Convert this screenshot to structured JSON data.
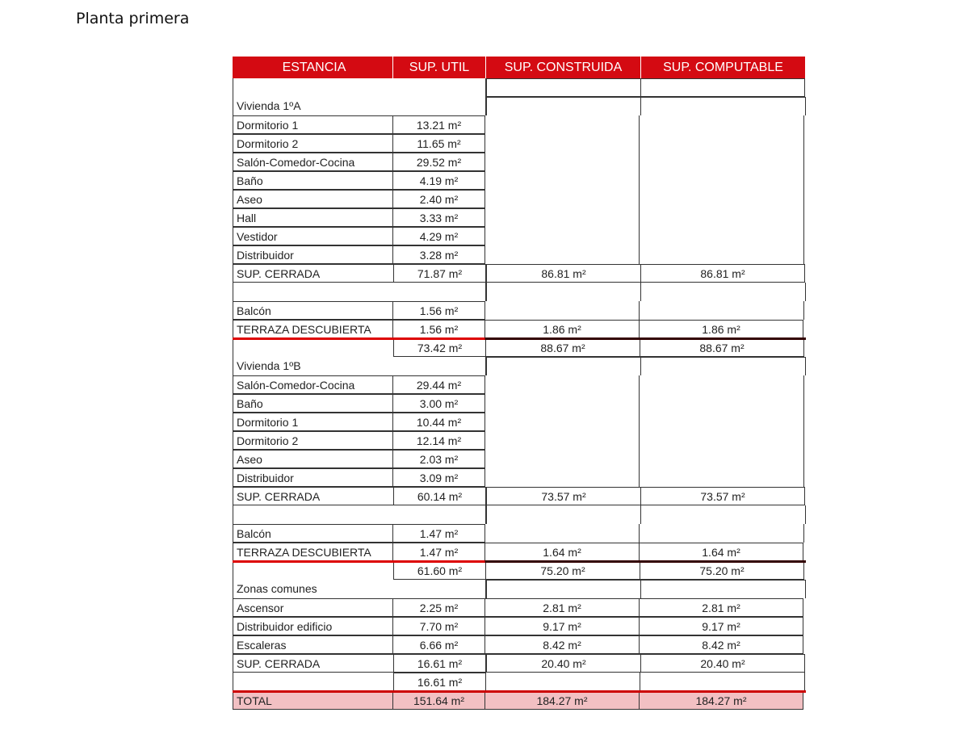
{
  "title": "Planta primera",
  "header": [
    "ESTANCIA",
    "SUP. UTIL",
    "SUP. CONSTRUIDA",
    "SUP. COMPUTABLE"
  ],
  "colors": {
    "header_bg": "#d40a12",
    "total_bg": "#f2c0c3",
    "separator": "#cc0000"
  },
  "rows": [
    {
      "type": "blank-top",
      "cells": [
        "",
        "",
        "",
        ""
      ]
    },
    {
      "type": "section",
      "cells": [
        "Vivienda 1ºA",
        "",
        "",
        ""
      ]
    },
    {
      "type": "item",
      "cells": [
        "Dormitorio 1",
        "13.21 m²",
        "",
        ""
      ]
    },
    {
      "type": "item",
      "cells": [
        "Dormitorio 2",
        "11.65 m²",
        "",
        ""
      ]
    },
    {
      "type": "item",
      "cells": [
        "Salón-Comedor-Cocina",
        "29.52 m²",
        "",
        ""
      ]
    },
    {
      "type": "item",
      "cells": [
        "Baño",
        "4.19 m²",
        "",
        ""
      ]
    },
    {
      "type": "item",
      "cells": [
        "Aseo",
        "2.40 m²",
        "",
        ""
      ]
    },
    {
      "type": "item",
      "cells": [
        "Hall",
        "3.33 m²",
        "",
        ""
      ]
    },
    {
      "type": "item",
      "cells": [
        "Vestidor",
        "4.29 m²",
        "",
        ""
      ]
    },
    {
      "type": "item",
      "cells": [
        "Distribuidor",
        "3.28 m²",
        "",
        ""
      ]
    },
    {
      "type": "value",
      "cells": [
        "SUP. CERRADA",
        "71.87 m²",
        "86.81 m²",
        "86.81 m²"
      ]
    },
    {
      "type": "blank",
      "cells": [
        "",
        "",
        "",
        ""
      ]
    },
    {
      "type": "item",
      "cells": [
        "Balcón",
        "1.56 m²",
        "",
        ""
      ]
    },
    {
      "type": "value-sep",
      "cells": [
        "TERRAZA DESCUBIERTA",
        "1.56 m²",
        "1.86 m²",
        "1.86 m²"
      ]
    },
    {
      "type": "subtotal",
      "cells": [
        "",
        "73.42 m²",
        "88.67 m²",
        "88.67 m²"
      ]
    },
    {
      "type": "section",
      "cells": [
        "Vivienda 1ºB",
        "",
        "",
        ""
      ]
    },
    {
      "type": "item",
      "cells": [
        "Salón-Comedor-Cocina",
        "29.44 m²",
        "",
        ""
      ]
    },
    {
      "type": "item",
      "cells": [
        "Baño",
        "3.00 m²",
        "",
        ""
      ]
    },
    {
      "type": "item",
      "cells": [
        "Dormitorio 1",
        "10.44 m²",
        "",
        ""
      ]
    },
    {
      "type": "item",
      "cells": [
        "Dormitorio 2",
        "12.14 m²",
        "",
        ""
      ]
    },
    {
      "type": "item",
      "cells": [
        "Aseo",
        "2.03 m²",
        "",
        ""
      ]
    },
    {
      "type": "item",
      "cells": [
        "Distribuidor",
        "3.09 m²",
        "",
        ""
      ]
    },
    {
      "type": "value",
      "cells": [
        "SUP. CERRADA",
        "60.14 m²",
        "73.57 m²",
        "73.57 m²"
      ]
    },
    {
      "type": "blank",
      "cells": [
        "",
        "",
        "",
        ""
      ]
    },
    {
      "type": "item",
      "cells": [
        "Balcón",
        "1.47 m²",
        "",
        ""
      ]
    },
    {
      "type": "value-sep",
      "cells": [
        "TERRAZA DESCUBIERTA",
        "1.47 m²",
        "1.64 m²",
        "1.64 m²"
      ]
    },
    {
      "type": "subtotal",
      "cells": [
        "",
        "61.60 m²",
        "75.20 m²",
        "75.20 m²"
      ]
    },
    {
      "type": "section",
      "cells": [
        "Zonas comunes",
        "",
        "",
        ""
      ]
    },
    {
      "type": "value",
      "cells": [
        "Ascensor",
        "2.25 m²",
        "2.81 m²",
        "2.81 m²"
      ]
    },
    {
      "type": "value",
      "cells": [
        "Distribuidor edificio",
        "7.70 m²",
        "9.17 m²",
        "9.17 m²"
      ]
    },
    {
      "type": "value",
      "cells": [
        "Escaleras",
        "6.66 m²",
        "8.42 m²",
        "8.42 m²"
      ]
    },
    {
      "type": "value",
      "cells": [
        "SUP. CERRADA",
        "16.61 m²",
        "20.40 m²",
        "20.40 m²"
      ]
    },
    {
      "type": "subtotal-last",
      "cells": [
        "",
        "16.61 m²",
        "",
        ""
      ]
    },
    {
      "type": "total",
      "cells": [
        "TOTAL",
        "151.64 m²",
        "184.27 m²",
        "184.27 m²"
      ]
    }
  ]
}
